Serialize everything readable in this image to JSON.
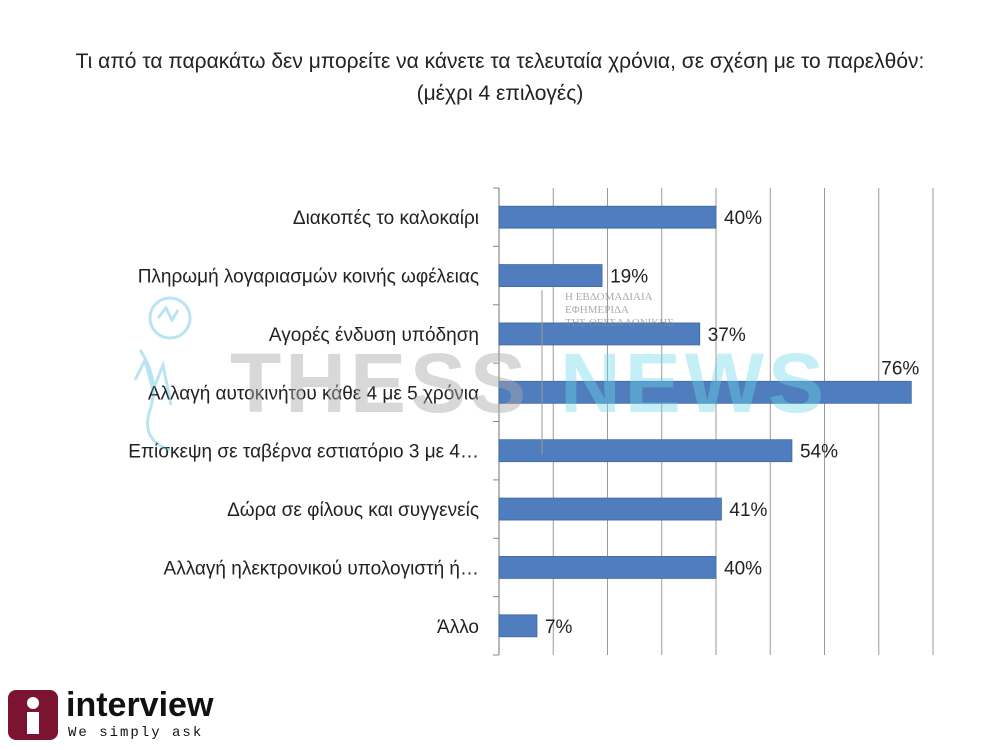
{
  "title": "Τι από τα παρακάτω δεν μπορείτε να κάνετε τα τελευταία χρόνια, σε σχέση με το παρελθόν:  (μέχρι 4 επιλογές)",
  "chart_data": {
    "type": "bar",
    "orientation": "horizontal",
    "categories": [
      "Διακοπές το καλοκαίρι",
      "Πληρωμή λογαριασμών κοινής ωφέλειας",
      "Αγορές ένδυση υπόδηση",
      "Αλλαγή αυτοκινήτου κάθε 4 με 5 χρόνια",
      "Επίσκεψη σε ταβέρνα εστιατόριο 3 με 4…",
      "Δώρα σε φίλους και συγγενείς",
      "Αλλαγή ηλεκτρονικού υπολογιστή ή…",
      "Άλλο"
    ],
    "values": [
      40,
      19,
      37,
      76,
      54,
      41,
      40,
      7
    ],
    "data_labels": [
      "40%",
      "19%",
      "37%",
      "76%",
      "54%",
      "41%",
      "40%",
      "7%"
    ],
    "xlim": [
      0,
      80
    ],
    "grid": true,
    "bar_color": "#4f7dbd"
  },
  "watermark": {
    "brand_left": "THESS",
    "brand_right": "NEWS",
    "tag_lines": [
      "Η ΕΒΔΟΜΑΔΙΑΙΑ",
      "ΕΦΗΜΕΡΙΔΑ",
      "ΤΗΣ ΘΕΣΣΑΛΟΝΙΚΗΣ"
    ]
  },
  "logo": {
    "name": "interview",
    "tagline": "We simply ask",
    "color": "#7a1430"
  }
}
